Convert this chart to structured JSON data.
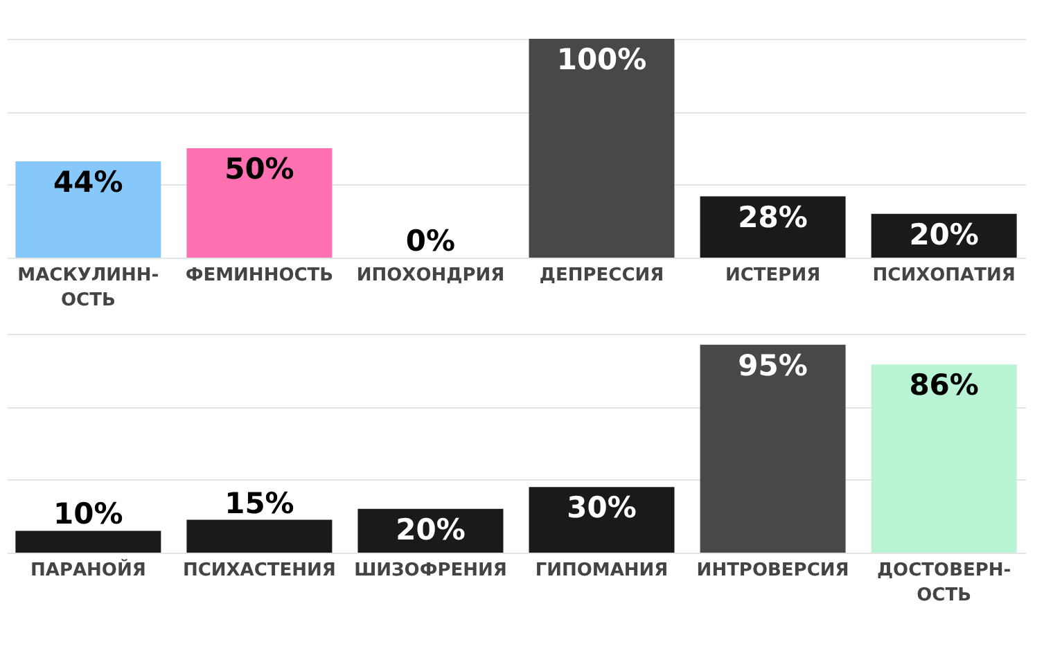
{
  "chart_data": [
    {
      "type": "bar",
      "categories": [
        "МАСКУЛИНН-ОСТЬ",
        "ФЕМИННОСТЬ",
        "ИПОХОНДРИЯ",
        "ДЕПРЕССИЯ",
        "ИСТЕРИЯ",
        "ПСИХОПАТИЯ"
      ],
      "values": [
        44,
        50,
        0,
        100,
        28,
        20
      ],
      "value_labels": [
        "44%",
        "50%",
        "0%",
        "100%",
        "28%",
        "20%"
      ],
      "colors": [
        "#86c8fa",
        "#ff70b0",
        "#222222",
        "#484848",
        "#1a1a1a",
        "#1a1a1a"
      ],
      "ylim": [
        0,
        100
      ],
      "yticks": [
        {
          "value": 0,
          "label": null
        },
        {
          "value": 33.3,
          "label": null
        },
        {
          "value": 66.7,
          "label": null
        },
        {
          "value": 100,
          "label": null
        }
      ],
      "grid": "y",
      "tick_labels": "x"
    },
    {
      "type": "bar",
      "categories": [
        "ПАРАНОЙЯ",
        "ПСИХАСТЕНИЯ",
        "ШИЗОФРЕНИЯ",
        "ГИПОМАНИЯ",
        "ИНТРОВЕРСИЯ",
        "ДОСТОВЕРН-ОСТЬ"
      ],
      "values": [
        10,
        15,
        20,
        30,
        95,
        86
      ],
      "value_labels": [
        "10%",
        "15%",
        "20%",
        "30%",
        "95%",
        "86%"
      ],
      "colors": [
        "#1a1a1a",
        "#1a1a1a",
        "#1a1a1a",
        "#1a1a1a",
        "#484848",
        "#b8f4d4"
      ],
      "ylim": [
        0,
        100
      ],
      "yticks": [
        {
          "value": 0,
          "label": null
        },
        {
          "value": 33.3,
          "label": null
        },
        {
          "value": 66.7,
          "label": null
        },
        {
          "value": 100,
          "label": null
        }
      ],
      "grid": "y",
      "tick_labels": "x"
    }
  ]
}
